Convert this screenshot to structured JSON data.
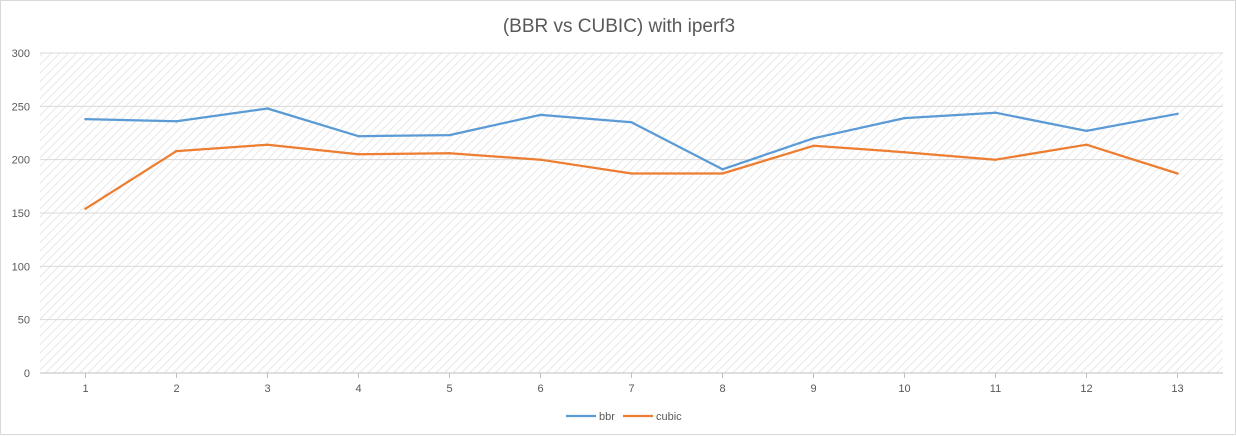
{
  "chart_data": {
    "type": "line",
    "title": "(BBR vs CUBIC) with iperf3",
    "xlabel": "",
    "ylabel": "",
    "categories": [
      "1",
      "2",
      "3",
      "4",
      "5",
      "6",
      "7",
      "8",
      "9",
      "10",
      "11",
      "12",
      "13"
    ],
    "ylim": [
      0,
      300
    ],
    "yticks": [
      0,
      50,
      100,
      150,
      200,
      250,
      300
    ],
    "grid": true,
    "legend_position": "bottom",
    "series": [
      {
        "name": "bbr",
        "color": "#5b9bd5",
        "values": [
          238,
          236,
          248,
          222,
          223,
          242,
          235,
          191,
          220,
          239,
          244,
          227,
          243
        ]
      },
      {
        "name": "cubic",
        "color": "#ed7d31",
        "values": [
          154,
          208,
          214,
          205,
          206,
          200,
          187,
          187,
          213,
          207,
          200,
          214,
          187
        ]
      }
    ]
  }
}
